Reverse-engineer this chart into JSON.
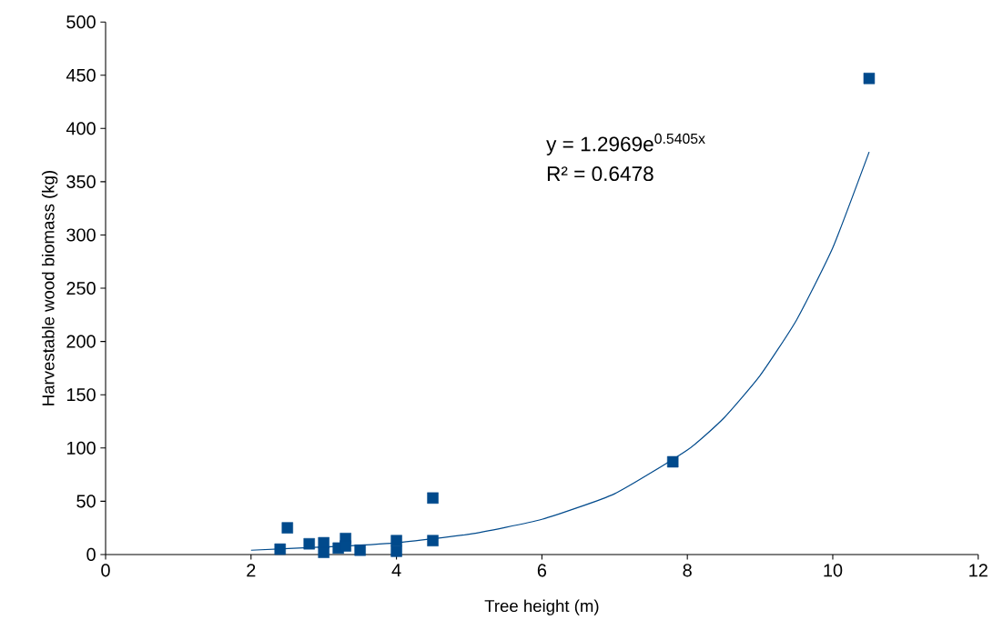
{
  "chart_data": {
    "type": "scatter",
    "xlabel": "Tree height (m)",
    "ylabel": "Harvestable wood biomass (kg)",
    "xlim": [
      0,
      12
    ],
    "xticks": [
      0,
      2,
      4,
      6,
      8,
      10,
      12
    ],
    "ylim": [
      0,
      500
    ],
    "yticks": [
      0,
      50,
      100,
      150,
      200,
      250,
      300,
      350,
      400,
      450,
      500
    ],
    "grid": false,
    "series": [
      {
        "color": "#004a8c",
        "marker": "square",
        "x": [
          2.4,
          2.5,
          2.8,
          3.0,
          3.0,
          3.2,
          3.3,
          3.3,
          3.5,
          4.0,
          4.0,
          4.5,
          4.5,
          7.8,
          10.5
        ],
        "values": [
          5,
          25,
          10,
          11,
          2,
          6,
          15,
          8,
          4,
          13,
          3,
          53,
          13,
          87,
          447
        ]
      },
      {
        "type": "line",
        "color": "#004a8c",
        "marker": "none",
        "line_style": "solid",
        "x": [
          2,
          3,
          4,
          5,
          6,
          7,
          8,
          8.5,
          9,
          9.5,
          10,
          10.5
        ],
        "values": [
          4,
          7,
          11,
          19,
          33,
          57,
          98,
          128,
          168,
          220,
          288,
          378
        ]
      }
    ],
    "annotations": [
      "y = 1.2969e$^{0.5405x}$",
      "R² = 0.6478"
    ]
  }
}
